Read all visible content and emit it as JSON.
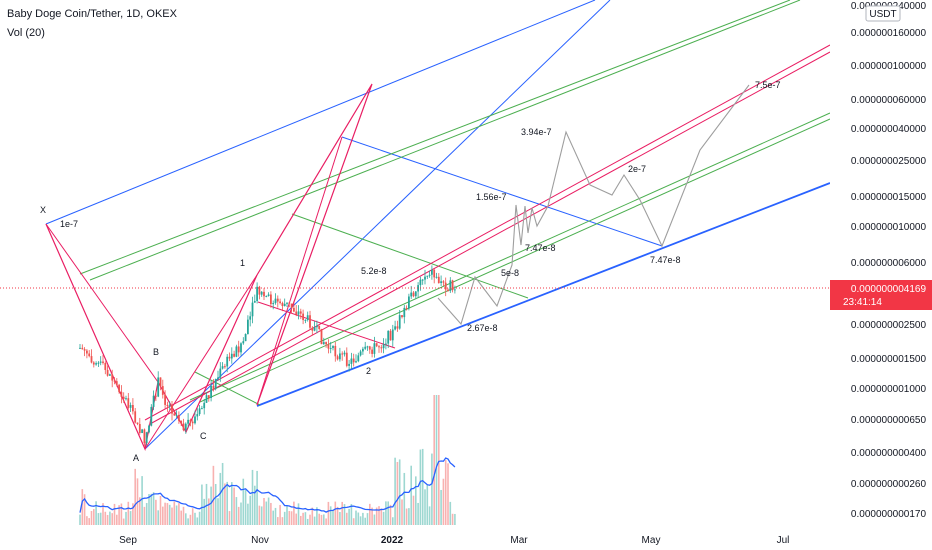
{
  "header": {
    "title": "Baby Doge Coin/Tether, 1D, OKEX",
    "indicator": "Vol (20)",
    "currency": "USDT"
  },
  "price_tag": {
    "value": "0.000000004169",
    "countdown": "23:41:14",
    "color": "#f23645"
  },
  "chart_data": {
    "type": "candlestick",
    "scale": "log",
    "x_axis": {
      "ticks": [
        "Sep",
        "Nov",
        "2022",
        "Mar",
        "May",
        "Jul"
      ]
    },
    "y_axis": {
      "ticks": [
        "0.000000240000",
        "0.000000160000",
        "0.000000100000",
        "0.000000060000",
        "0.000000040000",
        "0.000000025000",
        "0.000000015000",
        "0.000000010000",
        "0.000000006000",
        "0.000000002500",
        "0.000000001500",
        "0.000000001000",
        "0.000000000650",
        "0.000000000400",
        "0.000000000260",
        "0.000000000170"
      ]
    },
    "current_price": 4.169e-09,
    "wave_labels": [
      "X",
      "A",
      "B",
      "C",
      "1",
      "2"
    ],
    "price_annotations": [
      "1e-7",
      "5.2e-8",
      "2.67e-8",
      "5e-8",
      "1.56e-7",
      "7.47e-8",
      "3.94e-7",
      "2e-7",
      "7.47e-8",
      "7.5e-7"
    ],
    "colors": {
      "up": "#26a69a",
      "down": "#ef5350",
      "channel_blue": "#2962ff",
      "channel_green": "#4caf50",
      "channel_red": "#e91e63",
      "projection": "#9e9e9e",
      "volume_ma": "#2962ff"
    }
  }
}
